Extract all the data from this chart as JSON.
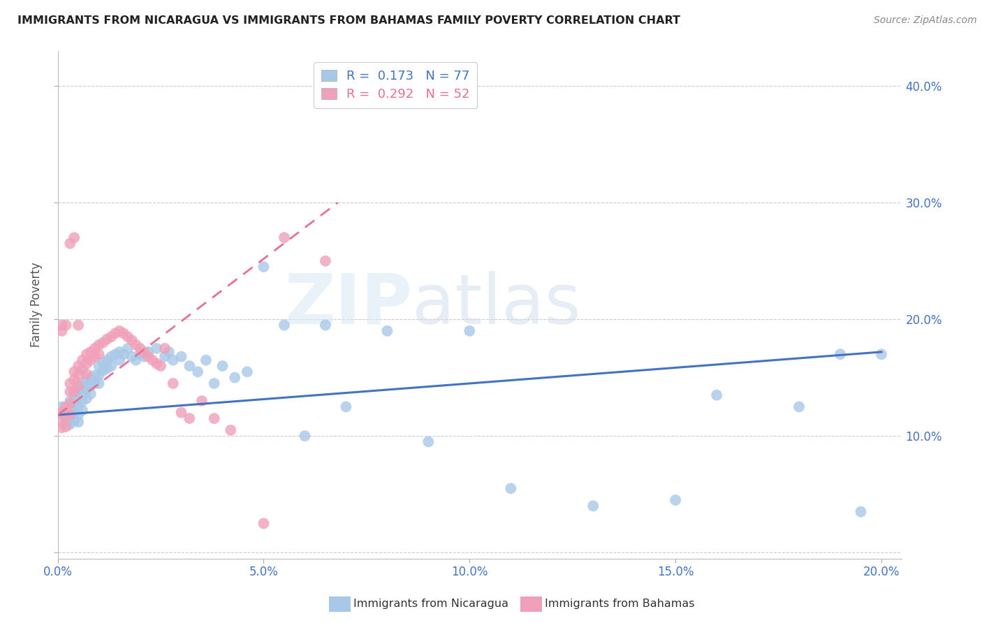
{
  "title": "IMMIGRANTS FROM NICARAGUA VS IMMIGRANTS FROM BAHAMAS FAMILY POVERTY CORRELATION CHART",
  "source": "Source: ZipAtlas.com",
  "ylabel": "Family Poverty",
  "xlim": [
    0.0,
    0.205
  ],
  "ylim": [
    -0.005,
    0.43
  ],
  "nicaragua_R": 0.173,
  "nicaragua_N": 77,
  "bahamas_R": 0.292,
  "bahamas_N": 52,
  "nicaragua_color": "#a8c8e8",
  "bahamas_color": "#f0a0b8",
  "nicaragua_line_color": "#4472c4",
  "bahamas_line_color": "#e87090",
  "grid_color": "#cccccc",
  "background_color": "#ffffff",
  "watermark_zip": "ZIP",
  "watermark_atlas": "atlas",
  "legend_label_nicaragua": "Immigrants from Nicaragua",
  "legend_label_bahamas": "Immigrants from Bahamas",
  "nic_line_x0": 0.0,
  "nic_line_y0": 0.118,
  "nic_line_x1": 0.2,
  "nic_line_y1": 0.172,
  "bah_line_x0": 0.0,
  "bah_line_y0": 0.118,
  "bah_line_x1": 0.068,
  "bah_line_y1": 0.3,
  "nic_scatter_x": [
    0.001,
    0.001,
    0.002,
    0.002,
    0.002,
    0.003,
    0.003,
    0.003,
    0.003,
    0.004,
    0.004,
    0.004,
    0.004,
    0.005,
    0.005,
    0.005,
    0.005,
    0.005,
    0.006,
    0.006,
    0.006,
    0.006,
    0.007,
    0.007,
    0.007,
    0.008,
    0.008,
    0.008,
    0.009,
    0.009,
    0.01,
    0.01,
    0.01,
    0.011,
    0.011,
    0.012,
    0.012,
    0.013,
    0.013,
    0.014,
    0.015,
    0.015,
    0.016,
    0.017,
    0.018,
    0.019,
    0.02,
    0.021,
    0.022,
    0.024,
    0.026,
    0.027,
    0.028,
    0.03,
    0.032,
    0.034,
    0.036,
    0.038,
    0.04,
    0.043,
    0.046,
    0.05,
    0.055,
    0.06,
    0.065,
    0.07,
    0.08,
    0.09,
    0.1,
    0.11,
    0.13,
    0.15,
    0.16,
    0.18,
    0.19,
    0.195,
    0.2
  ],
  "nic_scatter_y": [
    0.12,
    0.125,
    0.118,
    0.112,
    0.115,
    0.13,
    0.122,
    0.118,
    0.11,
    0.135,
    0.128,
    0.12,
    0.113,
    0.14,
    0.132,
    0.125,
    0.118,
    0.112,
    0.145,
    0.138,
    0.13,
    0.122,
    0.148,
    0.14,
    0.132,
    0.15,
    0.143,
    0.136,
    0.152,
    0.145,
    0.16,
    0.152,
    0.145,
    0.163,
    0.156,
    0.165,
    0.158,
    0.168,
    0.16,
    0.17,
    0.172,
    0.165,
    0.17,
    0.175,
    0.168,
    0.165,
    0.17,
    0.168,
    0.172,
    0.175,
    0.168,
    0.172,
    0.165,
    0.168,
    0.16,
    0.155,
    0.165,
    0.145,
    0.16,
    0.15,
    0.155,
    0.245,
    0.195,
    0.1,
    0.195,
    0.125,
    0.19,
    0.095,
    0.19,
    0.055,
    0.04,
    0.045,
    0.135,
    0.125,
    0.17,
    0.035,
    0.17
  ],
  "bah_scatter_x": [
    0.001,
    0.001,
    0.001,
    0.002,
    0.002,
    0.002,
    0.003,
    0.003,
    0.003,
    0.003,
    0.004,
    0.004,
    0.004,
    0.005,
    0.005,
    0.005,
    0.006,
    0.006,
    0.007,
    0.007,
    0.007,
    0.008,
    0.008,
    0.009,
    0.009,
    0.01,
    0.01,
    0.011,
    0.012,
    0.013,
    0.014,
    0.015,
    0.016,
    0.017,
    0.018,
    0.019,
    0.02,
    0.021,
    0.022,
    0.023,
    0.024,
    0.025,
    0.026,
    0.028,
    0.03,
    0.032,
    0.035,
    0.038,
    0.042,
    0.05,
    0.055,
    0.065
  ],
  "bah_scatter_y": [
    0.12,
    0.112,
    0.107,
    0.125,
    0.118,
    0.108,
    0.145,
    0.138,
    0.128,
    0.118,
    0.155,
    0.148,
    0.138,
    0.16,
    0.152,
    0.143,
    0.165,
    0.157,
    0.17,
    0.162,
    0.153,
    0.172,
    0.165,
    0.175,
    0.168,
    0.178,
    0.17,
    0.18,
    0.183,
    0.185,
    0.188,
    0.19,
    0.188,
    0.185,
    0.182,
    0.178,
    0.175,
    0.172,
    0.168,
    0.165,
    0.162,
    0.16,
    0.175,
    0.145,
    0.12,
    0.115,
    0.13,
    0.115,
    0.105,
    0.025,
    0.27,
    0.25
  ],
  "bah_extra_x": [
    0.001,
    0.001,
    0.002,
    0.003,
    0.004,
    0.005
  ],
  "bah_extra_y": [
    0.195,
    0.19,
    0.195,
    0.265,
    0.27,
    0.195
  ]
}
